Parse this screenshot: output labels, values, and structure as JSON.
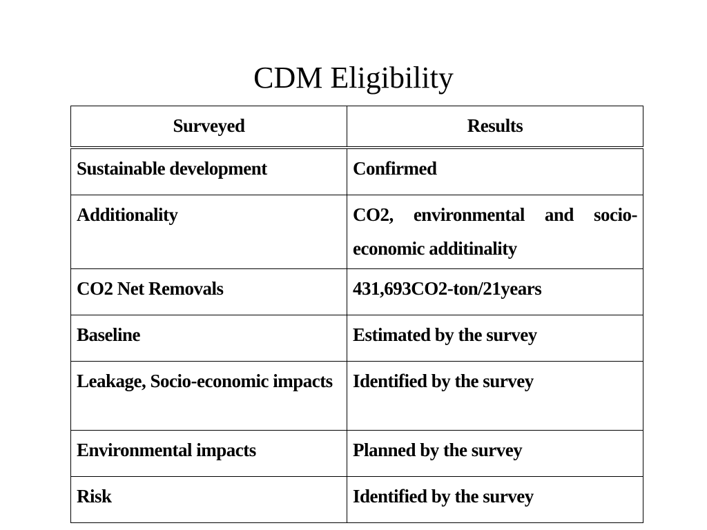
{
  "slide": {
    "title": "CDM Eligibility"
  },
  "table": {
    "headers": [
      "Surveyed",
      "Results"
    ],
    "rows": [
      {
        "surveyed": "Sustainable development",
        "result": "Confirmed"
      },
      {
        "surveyed": "Additionality",
        "result": "CO2, environmental and socio-economic additinality"
      },
      {
        "surveyed": "CO2 Net Removals",
        "result": "431,693CO2-ton/21years"
      },
      {
        "surveyed": "Baseline",
        "result": "Estimated by the survey"
      },
      {
        "surveyed": "Leakage, Socio-economic impacts",
        "result": "Identified by the survey"
      },
      {
        "surveyed": "Environmental impacts",
        "result": "Planned by the survey"
      },
      {
        "surveyed": "Risk",
        "result": "Identified by the survey"
      }
    ]
  }
}
